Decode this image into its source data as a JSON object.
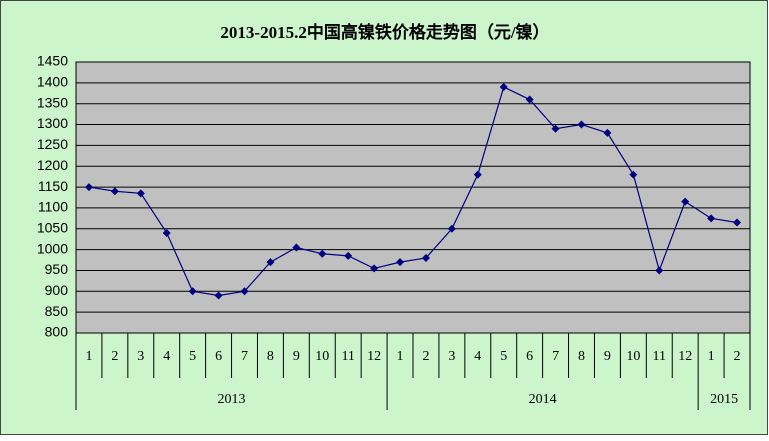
{
  "chart_data": {
    "type": "line",
    "title": "2013-2015.2中国高镍铁价格走势图（元/镍）",
    "category_groups": [
      {
        "name": "2013",
        "categories": [
          "1",
          "2",
          "3",
          "4",
          "5",
          "6",
          "7",
          "8",
          "9",
          "10",
          "11",
          "12"
        ]
      },
      {
        "name": "2014",
        "categories": [
          "1",
          "2",
          "3",
          "4",
          "5",
          "6",
          "7",
          "8",
          "9",
          "10",
          "11",
          "12"
        ]
      },
      {
        "name": "2015",
        "categories": [
          "1",
          "2"
        ]
      }
    ],
    "series": [
      {
        "name": "高镍铁价格",
        "color": "#000080",
        "values": [
          1150,
          1140,
          1135,
          1040,
          900,
          890,
          900,
          970,
          1005,
          990,
          985,
          955,
          970,
          980,
          1050,
          1180,
          1390,
          1360,
          1290,
          1300,
          1280,
          1180,
          950,
          1115,
          1075,
          1065
        ]
      }
    ],
    "ylim": [
      800,
      1450
    ],
    "yticks": [
      800,
      850,
      900,
      950,
      1000,
      1050,
      1100,
      1150,
      1200,
      1250,
      1300,
      1350,
      1400,
      1450
    ],
    "grid": true,
    "plot_color": "#c0c0c0",
    "background": "#ccf5cc"
  }
}
